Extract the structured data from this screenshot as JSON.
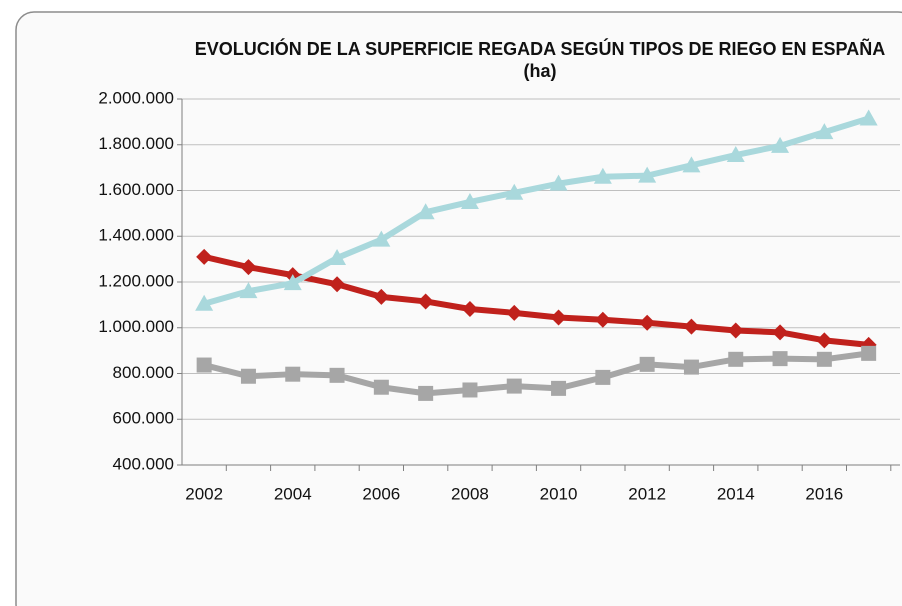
{
  "chart_data": {
    "type": "line",
    "title": "EVOLUCIÓN DE LA SUPERFICIE REGADA SEGÚN TIPOS DE RIEGO EN ESPAÑA (ha)",
    "categories": [
      "2002",
      null,
      "2004",
      null,
      "2006",
      null,
      "2008",
      null,
      "2010",
      null,
      "2012",
      null,
      "2014",
      null,
      "2016",
      null
    ],
    "series": [
      {
        "color": "#c0211c",
        "marker": "diamond",
        "values": [
          1310000,
          1265000,
          1230000,
          1190000,
          1135000,
          1115000,
          1082000,
          1065000,
          1045000,
          1035000,
          1022000,
          1005000,
          988000,
          980000,
          945000,
          925000
        ]
      },
      {
        "color": "#a9d8dc",
        "marker": "triangle",
        "values": [
          1105000,
          1160000,
          1195000,
          1305000,
          1385000,
          1505000,
          1550000,
          1590000,
          1630000,
          1660000,
          1665000,
          1710000,
          1755000,
          1795000,
          1855000,
          1915000
        ]
      },
      {
        "color": "#a6a6a6",
        "marker": "square",
        "values": [
          837000,
          788000,
          797000,
          792000,
          740000,
          713000,
          728000,
          745000,
          735000,
          783000,
          840000,
          828000,
          862000,
          865000,
          862000,
          888000
        ]
      }
    ],
    "ylim": [
      400000,
      2000000
    ],
    "yticks": [
      {
        "value": 400000,
        "label": "400.000"
      },
      {
        "value": 600000,
        "label": "600.000"
      },
      {
        "value": 800000,
        "label": "800.000"
      },
      {
        "value": 1000000,
        "label": "1.000.000"
      },
      {
        "value": 1200000,
        "label": "1.200.000"
      },
      {
        "value": 1400000,
        "label": "1.400.000"
      },
      {
        "value": 1600000,
        "label": "1.600.000"
      },
      {
        "value": 1800000,
        "label": "1.800.000"
      },
      {
        "value": 2000000,
        "label": "2.000.000"
      }
    ],
    "grid": true
  }
}
